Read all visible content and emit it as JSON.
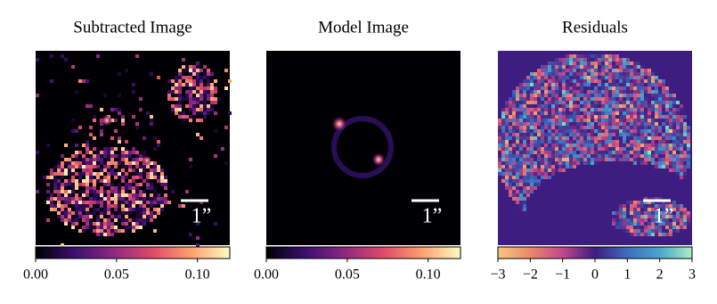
{
  "chart_data": [
    {
      "type": "image",
      "title": "Subtracted Image",
      "scale_label": "1”",
      "colormap": [
        "#000004",
        "#3b0f70",
        "#8c2981",
        "#de4968",
        "#fe9f6d",
        "#fcfdbf"
      ],
      "xlim": [
        0,
        0.12
      ],
      "xticks": [
        {
          "value": 0,
          "label": "0.00"
        },
        {
          "value": 0.05,
          "label": "0.05"
        },
        {
          "value": 0.1,
          "label": "0.10"
        }
      ]
    },
    {
      "type": "image",
      "title": "Model Image",
      "scale_label": "1”",
      "colormap": [
        "#000004",
        "#3b0f70",
        "#8c2981",
        "#de4968",
        "#fe9f6d",
        "#fcfdbf"
      ],
      "xlim": [
        0,
        0.12
      ],
      "xticks": [
        {
          "value": 0,
          "label": "0.00"
        },
        {
          "value": 0.05,
          "label": "0.05"
        },
        {
          "value": 0.1,
          "label": "0.10"
        }
      ]
    },
    {
      "type": "image",
      "title": "Residuals",
      "scale_label": "1”",
      "colormap": [
        "#f7c77e",
        "#e98a6b",
        "#c1478d",
        "#3d1d80",
        "#3f6cc0",
        "#4aa6c9",
        "#a9f0c2"
      ],
      "xlim": [
        -3,
        3
      ],
      "xticks": [
        {
          "value": -3,
          "label": "−3"
        },
        {
          "value": -2,
          "label": "−2"
        },
        {
          "value": -1,
          "label": "−1"
        },
        0,
        1,
        2,
        3
      ]
    }
  ]
}
